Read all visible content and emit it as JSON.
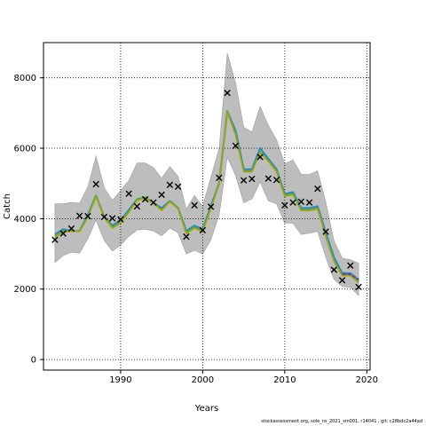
{
  "chart_data": {
    "type": "line",
    "xlabel": "Years",
    "ylabel": "Catch",
    "xlim": [
      1980.6,
      2020.4
    ],
    "ylim": [
      -300,
      9000
    ],
    "grid": true,
    "grid_style": "dotted",
    "x_ticks": [
      1990,
      2000,
      2010,
      2020
    ],
    "y_ticks": [
      0,
      2000,
      4000,
      6000,
      8000
    ],
    "x": [
      1982,
      1983,
      1984,
      1985,
      1986,
      1987,
      1988,
      1989,
      1990,
      1991,
      1992,
      1993,
      1994,
      1995,
      1996,
      1997,
      1998,
      1999,
      2000,
      2001,
      2002,
      2003,
      2004,
      2005,
      2006,
      2007,
      2008,
      2009,
      2010,
      2011,
      2012,
      2013,
      2014,
      2015,
      2016,
      2017,
      2018,
      2019
    ],
    "observed": [
      3400,
      3580,
      3720,
      4080,
      4070,
      4980,
      4050,
      4010,
      3980,
      4710,
      4350,
      4550,
      4460,
      4680,
      4960,
      4910,
      3490,
      4380,
      3670,
      4340,
      5160,
      7570,
      6070,
      5090,
      5130,
      5750,
      5140,
      5100,
      4380,
      4460,
      4480,
      4460,
      4850,
      3630,
      2550,
      2250,
      2670,
      2060
    ],
    "band_upper": [
      4420,
      4420,
      4460,
      4440,
      4900,
      5780,
      4880,
      4520,
      4800,
      5080,
      5580,
      5580,
      5450,
      5150,
      5480,
      5200,
      4270,
      4660,
      4350,
      5180,
      5990,
      8700,
      7860,
      6600,
      6460,
      7190,
      6650,
      6240,
      5560,
      5670,
      5260,
      5250,
      5360,
      4470,
      3370,
      2880,
      2830,
      2740
    ],
    "band_lower": [
      2750,
      2950,
      3050,
      3020,
      3430,
      3960,
      3380,
      3080,
      3250,
      3500,
      3680,
      3700,
      3650,
      3510,
      3730,
      3600,
      3000,
      3100,
      3000,
      3400,
      4100,
      5750,
      5230,
      4450,
      4560,
      5040,
      4510,
      4420,
      3870,
      3870,
      3550,
      3590,
      3640,
      2900,
      2280,
      2070,
      2050,
      1820
    ],
    "series": [
      {
        "color": "#2b8cbe",
        "values": [
          3550,
          3700,
          3650,
          3650,
          4100,
          4650,
          4050,
          3800,
          3950,
          4250,
          4550,
          4600,
          4450,
          4300,
          4500,
          4300,
          3650,
          3800,
          3700,
          4350,
          5000,
          7050,
          6500,
          5400,
          5400,
          6000,
          5700,
          5400,
          4700,
          4750,
          4300,
          4300,
          4350,
          3600,
          2900,
          2450,
          2450,
          2250
        ]
      },
      {
        "color": "#4dac26",
        "values": [
          3500,
          3650,
          3650,
          3650,
          4050,
          4650,
          4050,
          3750,
          3900,
          4200,
          4550,
          4600,
          4450,
          4250,
          4500,
          4300,
          3600,
          3750,
          3650,
          4300,
          5000,
          7050,
          6400,
          5350,
          5350,
          5900,
          5650,
          5350,
          4650,
          4700,
          4250,
          4250,
          4300,
          3500,
          2800,
          2400,
          2400,
          2200
        ]
      },
      {
        "color": "#a6a60a",
        "values": [
          3480,
          3620,
          3640,
          3640,
          4030,
          4620,
          4030,
          3730,
          3880,
          4180,
          4520,
          4580,
          4430,
          4230,
          4480,
          4280,
          3580,
          3730,
          3630,
          4280,
          4980,
          7020,
          6380,
          5330,
          5330,
          5880,
          5630,
          5330,
          4630,
          4680,
          4230,
          4230,
          4280,
          3480,
          2780,
          2380,
          2380,
          2180
        ]
      }
    ],
    "recent_series": {
      "color": "#6a3d9a",
      "x": [
        2017,
        2018,
        2019
      ],
      "values": [
        2430,
        2420,
        2280
      ]
    }
  },
  "footer_text": "stockassessment.org, sole_ns_2021_sm001, r14041 , git: c28bdc2a44ad"
}
